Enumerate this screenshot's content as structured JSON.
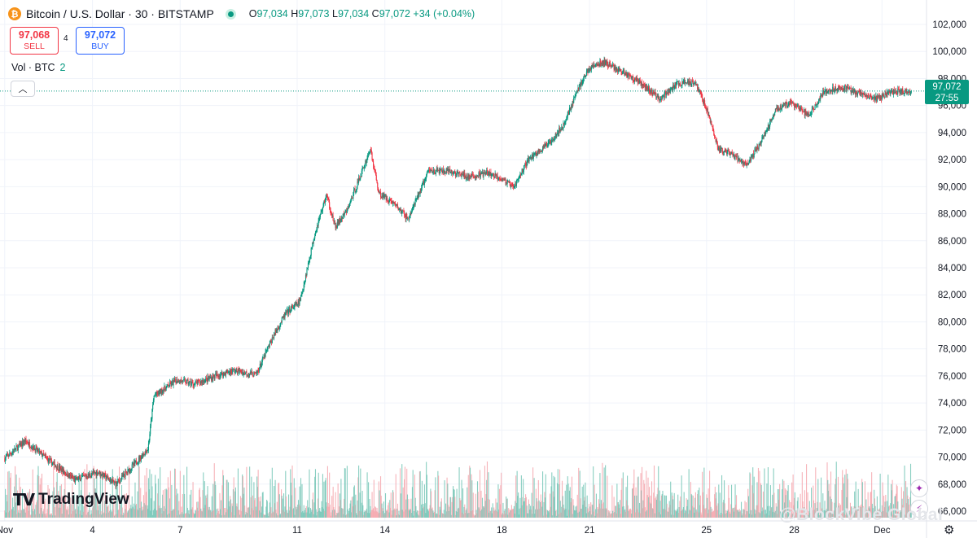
{
  "header": {
    "title": "Bitcoin / U.S. Dollar · 30 · BITSTAMP",
    "coin_icon": "bitcoin-icon",
    "ohlc": {
      "o_label": "O",
      "o": "97,034",
      "h_label": "H",
      "h": "97,073",
      "l_label": "L",
      "l": "97,034",
      "c_label": "C",
      "c": "97,072",
      "change": "+34 (+0.04%)"
    }
  },
  "trade": {
    "sell_price": "97,068",
    "sell_label": "SELL",
    "spread": "4",
    "buy_price": "97,072",
    "buy_label": "BUY"
  },
  "volume_legend": {
    "label": "Vol · BTC",
    "value": "2"
  },
  "price_tag": {
    "price": "97,072",
    "countdown": "27:55"
  },
  "logo": "TradingView",
  "watermark": "@BlockVibe Global",
  "colors": {
    "up": "#089981",
    "down": "#f23645",
    "grid": "#f0f3fa",
    "sell": "#f23645",
    "buy": "#2962ff"
  },
  "chart_data": {
    "type": "candlestick",
    "interval": "30",
    "symbol": "BTCUSD",
    "exchange": "BITSTAMP",
    "y_ticks": [
      66000,
      68000,
      70000,
      72000,
      74000,
      76000,
      78000,
      80000,
      82000,
      84000,
      86000,
      88000,
      90000,
      92000,
      94000,
      96000,
      98000,
      100000,
      102000
    ],
    "y_tick_labels": [
      "66,000",
      "68,000",
      "70,000",
      "72,000",
      "74,000",
      "76,000",
      "78,000",
      "80,000",
      "82,000",
      "84,000",
      "86,000",
      "88,000",
      "90,000",
      "92,000",
      "94,000",
      "96,000",
      "98,000",
      "100,000",
      "102,000"
    ],
    "ylim": [
      64000,
      103000
    ],
    "x_labels": [
      "Nov",
      "4",
      "7",
      "11",
      "14",
      "18",
      "21",
      "25",
      "28",
      "Dec"
    ],
    "x_label_days": [
      1,
      4,
      7,
      11,
      14,
      18,
      21,
      25,
      28,
      31
    ],
    "xlim_days": [
      0.95,
      32.3
    ],
    "last_price": 97072,
    "price_path_days": [
      1.0,
      1.7,
      2.6,
      3.4,
      4.2,
      4.8,
      5.4,
      5.9,
      6.1,
      6.5,
      6.9,
      7.5,
      8.2,
      8.8,
      9.6,
      10.2,
      10.6,
      11.1,
      11.6,
      12.0,
      12.3,
      12.7,
      13.2,
      13.5,
      13.8,
      14.3,
      14.8,
      15.5,
      16.2,
      16.9,
      17.5,
      18.0,
      18.4,
      18.9,
      19.5,
      20.1,
      20.6,
      21.0,
      21.5,
      22.2,
      22.8,
      23.4,
      24.0,
      24.6,
      25.0,
      25.4,
      25.9,
      26.4,
      26.9,
      27.4,
      27.9,
      28.5,
      29.0,
      29.6,
      30.3,
      30.8,
      31.4,
      32.0
    ],
    "price_path_values": [
      69900,
      71200,
      69600,
      68300,
      68900,
      68000,
      69400,
      70600,
      74500,
      75100,
      75700,
      75400,
      76000,
      76400,
      76100,
      79000,
      80600,
      81500,
      86500,
      89400,
      87000,
      88200,
      91000,
      92800,
      89500,
      88800,
      87600,
      91200,
      91100,
      90700,
      91000,
      90600,
      89900,
      92000,
      93000,
      94500,
      97200,
      98800,
      99200,
      98400,
      97600,
      96500,
      97600,
      97800,
      95800,
      92800,
      92300,
      91600,
      93500,
      95800,
      96200,
      95200,
      97000,
      97400,
      96800,
      96500,
      97034,
      97072
    ],
    "volume_axis_visible": false
  }
}
